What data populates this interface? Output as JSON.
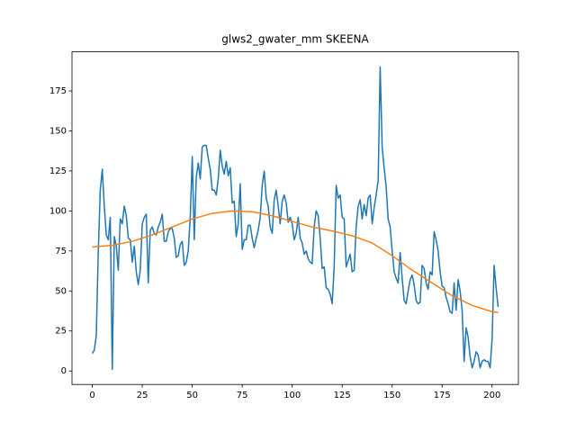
{
  "chart_data": {
    "type": "line",
    "title": "glws2_gwater_mm SKEENA",
    "xlim": [
      -10.15,
      213.15
    ],
    "ylim": [
      -8.45,
      199.45
    ],
    "xticks": [
      0,
      25,
      50,
      75,
      100,
      125,
      150,
      175,
      200
    ],
    "yticks": [
      0,
      25,
      50,
      75,
      100,
      125,
      150,
      175
    ],
    "grid": false,
    "series": [
      {
        "color": "#1f77b4",
        "x": [
          0,
          1,
          2,
          3,
          4,
          5,
          6,
          7,
          8,
          9,
          10,
          11,
          12,
          13,
          14,
          15,
          16,
          17,
          18,
          19,
          20,
          21,
          22,
          23,
          24,
          25,
          26,
          27,
          28,
          29,
          30,
          31,
          32,
          33,
          34,
          35,
          36,
          37,
          38,
          39,
          40,
          41,
          42,
          43,
          44,
          45,
          46,
          47,
          48,
          49,
          50,
          51,
          52,
          53,
          54,
          55,
          56,
          57,
          58,
          59,
          60,
          61,
          62,
          63,
          64,
          65,
          66,
          67,
          68,
          69,
          70,
          71,
          72,
          73,
          74,
          75,
          76,
          77,
          78,
          79,
          80,
          81,
          82,
          83,
          84,
          85,
          86,
          87,
          88,
          89,
          90,
          91,
          92,
          93,
          94,
          95,
          96,
          97,
          98,
          99,
          100,
          101,
          102,
          103,
          104,
          105,
          106,
          107,
          108,
          109,
          110,
          111,
          112,
          113,
          114,
          115,
          116,
          117,
          118,
          119,
          120,
          121,
          122,
          123,
          124,
          125,
          126,
          127,
          128,
          129,
          130,
          131,
          132,
          133,
          134,
          135,
          136,
          137,
          138,
          139,
          140,
          141,
          142,
          143,
          144,
          145,
          146,
          147,
          148,
          149,
          150,
          151,
          152,
          153,
          154,
          155,
          156,
          157,
          158,
          159,
          160,
          161,
          162,
          163,
          164,
          165,
          166,
          167,
          168,
          169,
          170,
          171,
          172,
          173,
          174,
          175,
          176,
          177,
          178,
          179,
          180,
          181,
          182,
          183,
          184,
          185,
          186,
          187,
          188,
          189,
          190,
          191,
          192,
          193,
          194,
          195,
          196,
          197,
          198,
          199,
          200,
          201,
          202,
          203
        ],
        "values": [
          11,
          13,
          22,
          75,
          113,
          126,
          103,
          85,
          82,
          96,
          1,
          84,
          78,
          63,
          95,
          92,
          103,
          97,
          83,
          82,
          68,
          78,
          62,
          54,
          63,
          92,
          96,
          98,
          55,
          88,
          90,
          86,
          85,
          90,
          93,
          98,
          81,
          81,
          87,
          89,
          89,
          83,
          71,
          72,
          79,
          81,
          66,
          68,
          75,
          96,
          134,
          82,
          121,
          130,
          120,
          140,
          141,
          141,
          133,
          126,
          113,
          113,
          110,
          120,
          138,
          128,
          123,
          131,
          122,
          127,
          105,
          106,
          84,
          92,
          117,
          76,
          82,
          82,
          91,
          91,
          83,
          77,
          83,
          88,
          96,
          116,
          125,
          108,
          103,
          90,
          86,
          107,
          113,
          103,
          92,
          106,
          110,
          105,
          93,
          96,
          92,
          82,
          86,
          96,
          83,
          80,
          73,
          75,
          70,
          68,
          67,
          90,
          100,
          97,
          83,
          64,
          65,
          52,
          51,
          48,
          42,
          65,
          116,
          108,
          110,
          96,
          95,
          65,
          69,
          73,
          62,
          63,
          90,
          103,
          107,
          95,
          104,
          97,
          108,
          110,
          92,
          102,
          110,
          119,
          190,
          140,
          127,
          115,
          95,
          90,
          75,
          62,
          58,
          55,
          74,
          58,
          44,
          42,
          50,
          57,
          60,
          54,
          44,
          42,
          43,
          66,
          64,
          55,
          51,
          62,
          60,
          87,
          82,
          75,
          62,
          53,
          52,
          46,
          42,
          37,
          36,
          55,
          38,
          57,
          50,
          38,
          6,
          27,
          21,
          9,
          2,
          6,
          12,
          10,
          2,
          6,
          7,
          6,
          6,
          2,
          20,
          66,
          52,
          40
        ]
      },
      {
        "color": "#ff7f0e",
        "x": [
          0,
          10,
          20,
          30,
          40,
          50,
          60,
          70,
          80,
          90,
          100,
          110,
          120,
          130,
          140,
          150,
          160,
          170,
          180,
          190,
          200,
          203
        ],
        "values": [
          77.5,
          78.5,
          81,
          85,
          90,
          95,
          98.5,
          100,
          99.5,
          97,
          93.5,
          90,
          87.5,
          84.5,
          80,
          72,
          63,
          55,
          47,
          41,
          37,
          36.5
        ]
      }
    ]
  }
}
